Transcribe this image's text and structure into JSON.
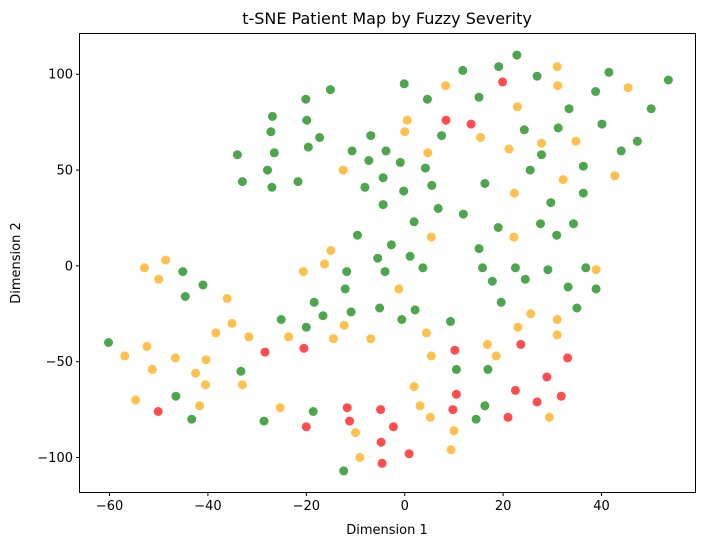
{
  "chart_data": {
    "type": "scatter",
    "title": "t-SNE Patient Map by Fuzzy Severity",
    "xlabel": "Dimension 1",
    "ylabel": "Dimension 2",
    "xlim": [
      -66,
      59
    ],
    "ylim": [
      -118,
      121
    ],
    "xticks": [
      -60,
      -40,
      -20,
      0,
      20,
      40
    ],
    "yticks": [
      -100,
      -50,
      0,
      50,
      100
    ],
    "grid": false,
    "colors": {
      "green": "#008000",
      "orange": "#FFA500",
      "red": "#FF0000"
    },
    "series": [
      {
        "color": "green",
        "points": [
          [
            -60.2,
            -40
          ],
          [
            -46.5,
            -68
          ],
          [
            -45.1,
            -3
          ],
          [
            -44.6,
            -16
          ],
          [
            -43.3,
            -80
          ],
          [
            -41,
            -10
          ],
          [
            -33.3,
            -55
          ],
          [
            -33,
            44
          ],
          [
            -34,
            58
          ],
          [
            -28.6,
            -81
          ],
          [
            -27.9,
            50
          ],
          [
            -26.9,
            78
          ],
          [
            -27.2,
            70
          ],
          [
            -26.5,
            59
          ],
          [
            -27,
            41
          ],
          [
            -25.1,
            -28
          ],
          [
            -21.7,
            44
          ],
          [
            -20.1,
            87
          ],
          [
            -19.9,
            76
          ],
          [
            -19.6,
            62
          ],
          [
            -20,
            -32
          ],
          [
            -18.6,
            -76
          ],
          [
            -18.4,
            -19
          ],
          [
            -17.3,
            67
          ],
          [
            -16.6,
            -26
          ],
          [
            -15.1,
            92
          ],
          [
            -12.4,
            -107
          ],
          [
            -12.1,
            -12
          ],
          [
            -11.8,
            -3
          ],
          [
            -10.7,
            60
          ],
          [
            -10.9,
            -24
          ],
          [
            -9.6,
            16
          ],
          [
            -8.1,
            41
          ],
          [
            -7.3,
            55
          ],
          [
            -6.9,
            68
          ],
          [
            -5.5,
            4
          ],
          [
            -5.1,
            -22
          ],
          [
            -4.4,
            32
          ],
          [
            -4.4,
            46
          ],
          [
            -4,
            -3
          ],
          [
            -3.8,
            60
          ],
          [
            -2.7,
            11
          ],
          [
            -0.9,
            54
          ],
          [
            -0.2,
            39
          ],
          [
            -0.1,
            95
          ],
          [
            -0.6,
            -28
          ],
          [
            1.1,
            5
          ],
          [
            1.9,
            23
          ],
          [
            2.1,
            -23
          ],
          [
            3.7,
            -1
          ],
          [
            4.2,
            51
          ],
          [
            4.6,
            87
          ],
          [
            5.5,
            42
          ],
          [
            6.8,
            30
          ],
          [
            7.5,
            68
          ],
          [
            9.3,
            -29
          ],
          [
            10.5,
            -54
          ],
          [
            11.9,
            27
          ],
          [
            11.8,
            102
          ],
          [
            14.5,
            -80
          ],
          [
            15.1,
            9
          ],
          [
            15.1,
            88
          ],
          [
            15.8,
            -1
          ],
          [
            16.3,
            -73
          ],
          [
            16.3,
            43
          ],
          [
            16.9,
            -54
          ],
          [
            17.8,
            -8
          ],
          [
            19,
            20
          ],
          [
            19.6,
            -19
          ],
          [
            19.1,
            104
          ],
          [
            22.5,
            -1
          ],
          [
            22.8,
            110
          ],
          [
            24.3,
            71
          ],
          [
            24.5,
            -7
          ],
          [
            25.5,
            50
          ],
          [
            26.9,
            99
          ],
          [
            27.6,
            22
          ],
          [
            27.8,
            58
          ],
          [
            29.1,
            -2
          ],
          [
            29.7,
            33
          ],
          [
            30.9,
            16
          ],
          [
            31.2,
            72
          ],
          [
            33.2,
            -11
          ],
          [
            33.4,
            82
          ],
          [
            34.3,
            22
          ],
          [
            35,
            -22
          ],
          [
            36.3,
            38
          ],
          [
            36.3,
            52
          ],
          [
            36.8,
            -1
          ],
          [
            38.9,
            -12
          ],
          [
            38.8,
            91
          ],
          [
            40.1,
            74
          ],
          [
            41.5,
            101
          ],
          [
            44,
            60
          ],
          [
            47.3,
            65
          ],
          [
            50.1,
            82
          ],
          [
            53.6,
            97
          ]
        ]
      },
      {
        "color": "orange",
        "points": [
          [
            -56.9,
            -47
          ],
          [
            -54.7,
            -70
          ],
          [
            -52.9,
            -1
          ],
          [
            -52.4,
            -42
          ],
          [
            -51.3,
            -54
          ],
          [
            -50,
            -7
          ],
          [
            -48.6,
            3
          ],
          [
            -46.6,
            -48
          ],
          [
            -42.5,
            -56
          ],
          [
            -41.7,
            -73
          ],
          [
            -40.5,
            -62
          ],
          [
            -40.4,
            -49
          ],
          [
            -38.4,
            -35
          ],
          [
            -36.1,
            -17
          ],
          [
            -35.1,
            -30
          ],
          [
            -33,
            -62
          ],
          [
            -31.7,
            -37
          ],
          [
            -25.3,
            -74
          ],
          [
            -23.6,
            -37
          ],
          [
            -20.6,
            -3
          ],
          [
            -16.3,
            1
          ],
          [
            -15,
            8
          ],
          [
            -14.5,
            -38
          ],
          [
            -12.3,
            -31
          ],
          [
            -12.5,
            50
          ],
          [
            -10,
            -87
          ],
          [
            -9.1,
            -100
          ],
          [
            -6.9,
            -38
          ],
          [
            -1.2,
            -12
          ],
          [
            0,
            70
          ],
          [
            0.5,
            76
          ],
          [
            1.9,
            -63
          ],
          [
            3.1,
            -73
          ],
          [
            4.4,
            -35
          ],
          [
            4.7,
            59
          ],
          [
            5.2,
            -79
          ],
          [
            5.4,
            15
          ],
          [
            5.4,
            -47
          ],
          [
            8.3,
            94
          ],
          [
            9.4,
            -96
          ],
          [
            10,
            -86
          ],
          [
            15.4,
            67
          ],
          [
            16.8,
            -41
          ],
          [
            18.6,
            -47
          ],
          [
            21.2,
            61
          ],
          [
            22.2,
            15
          ],
          [
            22.3,
            38
          ],
          [
            22.9,
            83
          ],
          [
            23,
            -32
          ],
          [
            25.6,
            -25
          ],
          [
            27.8,
            64
          ],
          [
            29.4,
            -79
          ],
          [
            31,
            -28
          ],
          [
            31,
            -36
          ],
          [
            31,
            104
          ],
          [
            31.1,
            94
          ],
          [
            32.2,
            45
          ],
          [
            34.8,
            65
          ],
          [
            38.9,
            -2
          ],
          [
            42.7,
            47
          ],
          [
            45.4,
            93
          ]
        ]
      },
      {
        "color": "red",
        "points": [
          [
            -50.1,
            -76
          ],
          [
            -28.4,
            -45
          ],
          [
            -20.5,
            -43
          ],
          [
            -20,
            -84
          ],
          [
            -11.7,
            -74
          ],
          [
            -11.2,
            -81
          ],
          [
            -4.9,
            -75
          ],
          [
            -4.8,
            -92
          ],
          [
            -4.6,
            -103
          ],
          [
            -2.3,
            -84
          ],
          [
            0.9,
            -98
          ],
          [
            8.4,
            76
          ],
          [
            9.8,
            -75
          ],
          [
            10.2,
            -44
          ],
          [
            10.5,
            -67
          ],
          [
            13.5,
            74
          ],
          [
            19.9,
            96
          ],
          [
            21,
            -79
          ],
          [
            22.5,
            -65
          ],
          [
            23.6,
            -41
          ],
          [
            26.9,
            -71
          ],
          [
            28.9,
            -58
          ],
          [
            31.8,
            -68
          ],
          [
            33.1,
            -48
          ]
        ]
      }
    ]
  }
}
